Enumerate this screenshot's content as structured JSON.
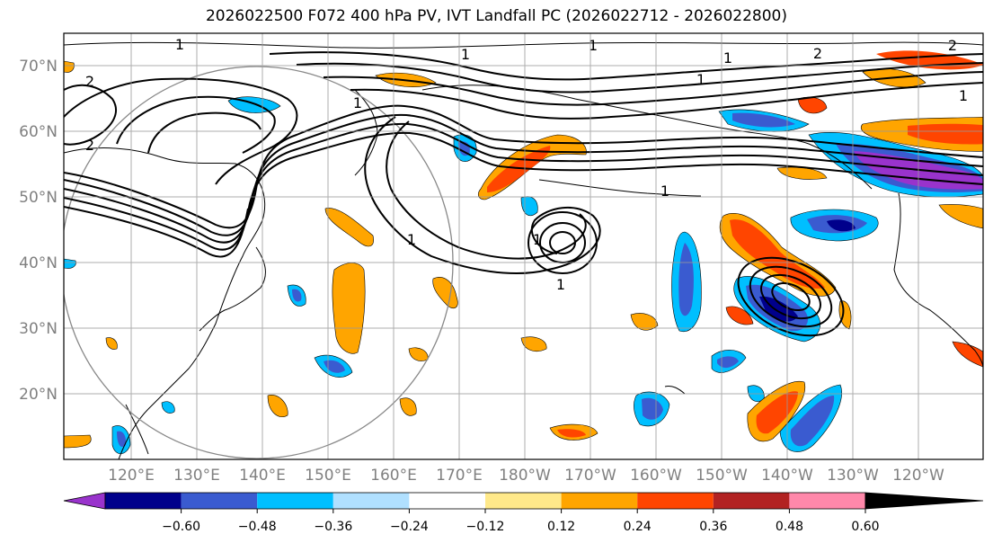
{
  "title": "2026022500 F072 400 hPa PV, IVT Landfall PC (2026022712 - 2026022800)",
  "lat_labels": [
    "70°N",
    "60°N",
    "50°N",
    "40°N",
    "30°N",
    "20°N"
  ],
  "lon_labels": [
    "120°E",
    "130°E",
    "140°E",
    "150°E",
    "160°E",
    "170°E",
    "180°W",
    "170°W",
    "160°W",
    "150°W",
    "140°W",
    "130°W",
    "120°W"
  ],
  "colorbar": {
    "colors": [
      "#9933cc",
      "#00008b",
      "#3a5bd0",
      "#00bfff",
      "#b0e0ff",
      "#ffffff",
      "#ffe98a",
      "#ffa500",
      "#ff4500",
      "#b22222",
      "#ff88aa"
    ],
    "tick_labels": [
      "−0.60",
      "−0.48",
      "−0.36",
      "−0.24",
      "−0.12",
      "0.12",
      "0.24",
      "0.36",
      "0.48",
      "0.60"
    ]
  },
  "contour_labels": [
    "1",
    "1",
    "1",
    "1",
    "1",
    "1",
    "1",
    "2",
    "2",
    "2",
    "2",
    "1",
    "1",
    "1",
    "1"
  ]
}
